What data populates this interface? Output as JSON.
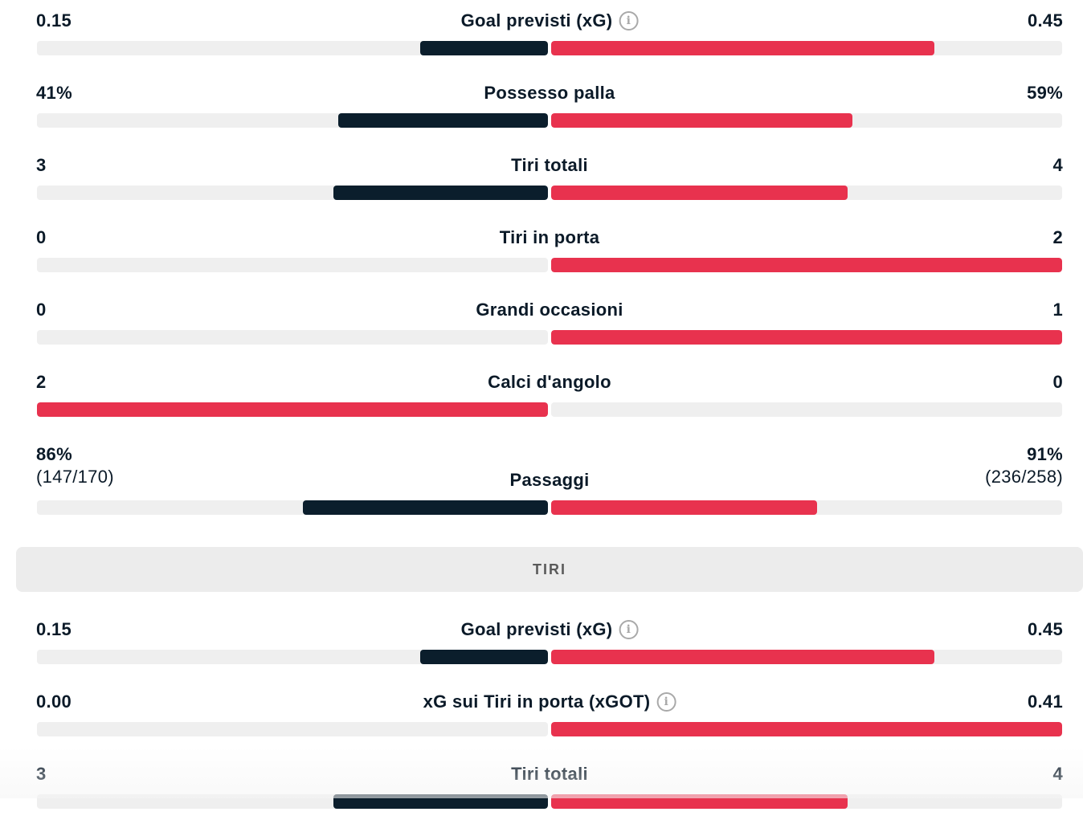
{
  "colors": {
    "home": "#0b1e2c",
    "away": "#e8324e",
    "track": "#efefef"
  },
  "section_title": "TIRI",
  "stats": [
    {
      "id": "xg",
      "label": "Goal previsti (xG)",
      "info": true,
      "left": "0.15",
      "right": "0.45",
      "left_frac": 0.25,
      "right_frac": 0.75,
      "left_color": "dark",
      "right_color": "red"
    },
    {
      "id": "possession",
      "label": "Possesso palla",
      "info": false,
      "left": "41%",
      "right": "59%",
      "left_frac": 0.41,
      "right_frac": 0.59,
      "left_color": "dark",
      "right_color": "red"
    },
    {
      "id": "total-shots",
      "label": "Tiri totali",
      "info": false,
      "left": "3",
      "right": "4",
      "left_frac": 0.42,
      "right_frac": 0.58,
      "left_color": "dark",
      "right_color": "red"
    },
    {
      "id": "shots-on-target",
      "label": "Tiri in porta",
      "info": false,
      "left": "0",
      "right": "2",
      "left_frac": 0.0,
      "right_frac": 1.0,
      "left_color": "dark",
      "right_color": "red"
    },
    {
      "id": "big-chances",
      "label": "Grandi occasioni",
      "info": false,
      "left": "0",
      "right": "1",
      "left_frac": 0.0,
      "right_frac": 1.0,
      "left_color": "dark",
      "right_color": "red"
    },
    {
      "id": "corners",
      "label": "Calci d'angolo",
      "info": false,
      "left": "2",
      "right": "0",
      "left_frac": 1.0,
      "right_frac": 0.0,
      "left_color": "red",
      "right_color": "dark"
    },
    {
      "id": "passes",
      "label": "Passaggi",
      "info": false,
      "left": "86%",
      "left_sub": "(147/170)",
      "right": "91%",
      "right_sub": "(236/258)",
      "left_frac": 0.48,
      "right_frac": 0.52,
      "left_color": "dark",
      "right_color": "red"
    }
  ],
  "shots_stats": [
    {
      "id": "xg2",
      "label": "Goal previsti (xG)",
      "info": true,
      "left": "0.15",
      "right": "0.45",
      "left_frac": 0.25,
      "right_frac": 0.75,
      "left_color": "dark",
      "right_color": "red"
    },
    {
      "id": "xgot",
      "label": "xG sui Tiri in porta (xGOT)",
      "info": true,
      "left": "0.00",
      "right": "0.41",
      "left_frac": 0.0,
      "right_frac": 1.0,
      "left_color": "dark",
      "right_color": "red"
    },
    {
      "id": "total-shots2",
      "label": "Tiri totali",
      "info": false,
      "left": "3",
      "right": "4",
      "left_frac": 0.42,
      "right_frac": 0.58,
      "left_color": "dark",
      "right_color": "red"
    }
  ]
}
